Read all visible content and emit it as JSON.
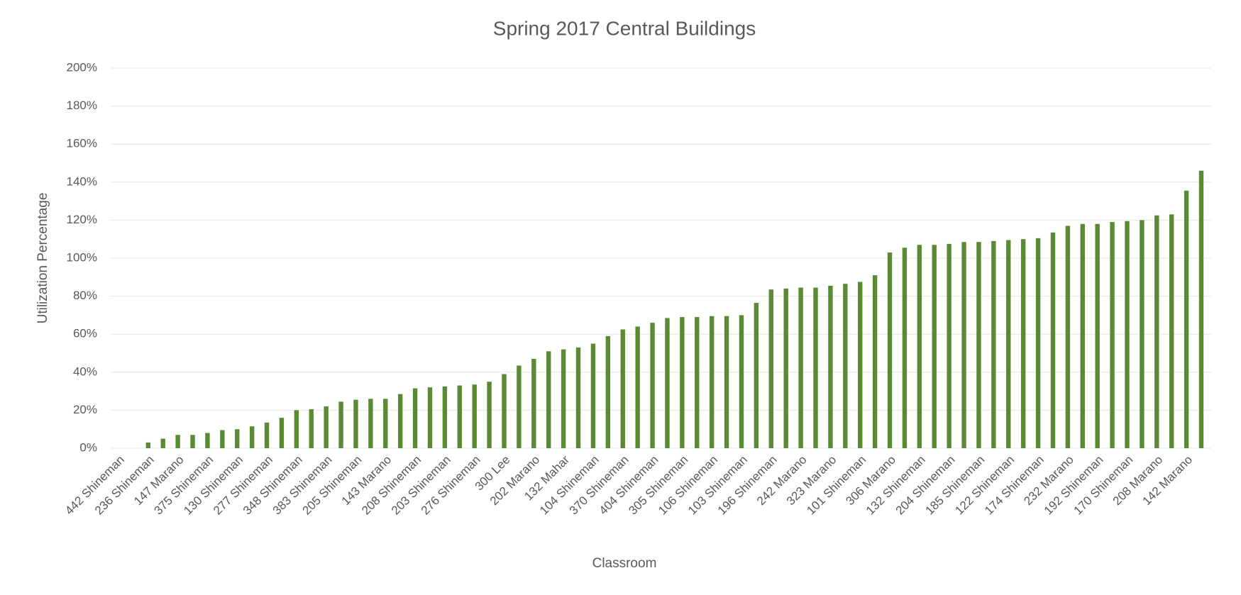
{
  "chart_data": {
    "type": "bar",
    "title": "Spring 2017 Central Buildings",
    "x_label": "Classroom",
    "y_label": "Utilization Percentage",
    "color": "#5b8a35",
    "grid": true,
    "ylim": [
      0,
      200
    ],
    "yticks": [
      {
        "value": 0,
        "label": "0%"
      },
      {
        "value": 20,
        "label": "20%"
      },
      {
        "value": 40,
        "label": "40%"
      },
      {
        "value": 60,
        "label": "60%"
      },
      {
        "value": 80,
        "label": "80%"
      },
      {
        "value": 100,
        "label": "100%"
      },
      {
        "value": 120,
        "label": "120%"
      },
      {
        "value": 140,
        "label": "140%"
      },
      {
        "value": 160,
        "label": "160%"
      },
      {
        "value": 180,
        "label": "180%"
      },
      {
        "value": 200,
        "label": "200%"
      }
    ],
    "categories": [
      "442 Shineman",
      null,
      "236 Shineman",
      null,
      "147 Marano",
      null,
      "375 Shineman",
      null,
      "130 Shineman",
      null,
      "277 Shineman",
      null,
      "348 Shineman",
      null,
      "383 Shineman",
      null,
      "205 Shineman",
      null,
      "143 Marano",
      null,
      "208 Shineman",
      null,
      "203 Shineman",
      null,
      "276 Shineman",
      null,
      "300 Lee",
      null,
      "202 Marano",
      null,
      "132 Mahar",
      null,
      "104 Shineman",
      null,
      "370 Shineman",
      null,
      "404 Shineman",
      null,
      "305 Shineman",
      null,
      "106 Shineman",
      null,
      "103 Shineman",
      null,
      "196 Shineman",
      null,
      "242 Marano",
      null,
      "323 Marano",
      null,
      "101 Shineman",
      null,
      "306 Marano",
      null,
      "132 Shineman",
      null,
      "204 Shineman",
      null,
      "185 Shineman",
      null,
      "122 Shineman",
      null,
      "174 Shineman",
      null,
      "232 Marano",
      null,
      "192 Shineman",
      null,
      "170 Shineman",
      null,
      "208 Marano",
      null,
      "142 Marano",
      null
    ],
    "values": [
      0,
      0,
      3,
      5,
      7,
      7,
      8,
      9.5,
      10,
      11.5,
      13.5,
      16,
      20,
      20.5,
      22,
      24.5,
      25.5,
      26,
      26,
      28.5,
      31.5,
      32,
      32.5,
      33,
      33.5,
      35,
      39,
      43.5,
      47,
      51,
      52,
      53,
      55,
      59,
      62.5,
      64,
      66,
      68.5,
      69,
      69,
      69.5,
      69.5,
      70,
      76.5,
      83.5,
      84,
      84.5,
      84.5,
      85.5,
      86.5,
      87.5,
      91,
      103,
      105.5,
      107,
      107,
      107.5,
      108.5,
      108.5,
      109,
      109.5,
      110,
      110.5,
      113.5,
      117,
      118,
      118,
      119,
      119.5,
      120,
      122.5,
      123,
      135.5,
      146
    ]
  }
}
